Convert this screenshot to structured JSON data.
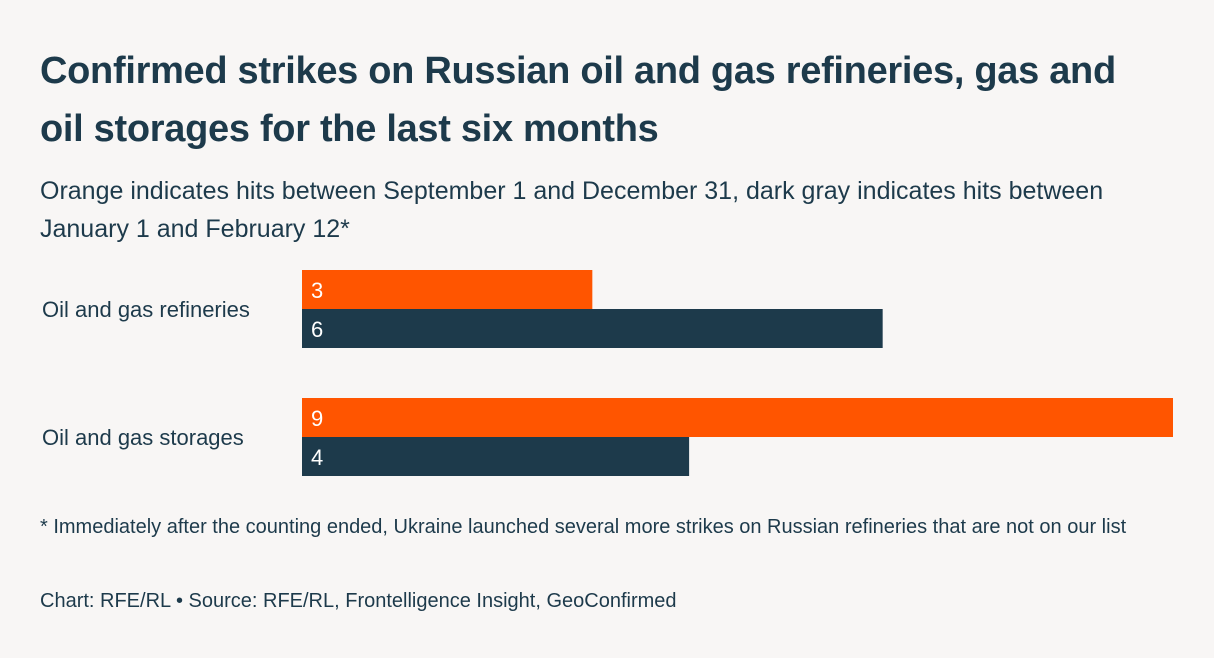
{
  "chart_data": {
    "type": "bar",
    "orientation": "horizontal",
    "title": "Confirmed strikes on Russian oil and gas refineries, gas and oil storages for the last six months",
    "subtitle": "Orange indicates hits between September 1 and December 31, dark gray indicates hits between January 1 and February 12*",
    "categories": [
      "Oil and gas refineries",
      "Oil and gas storages"
    ],
    "series": [
      {
        "name": "September 1 – December 31",
        "color": "#ff5500",
        "values": [
          3,
          9
        ]
      },
      {
        "name": "January 1 – February 12",
        "color": "#1d3a4b",
        "values": [
          6,
          4
        ]
      }
    ],
    "xlim": [
      0,
      9
    ],
    "grid": false,
    "xlabel": "",
    "ylabel": ""
  },
  "footer": {
    "note": "* Immediately after the counting ended, Ukraine launched several more strikes on Russian refineries that are not on our list",
    "credit": "Chart: RFE/RL • Source: RFE/RL, Frontelligence Insight, GeoConfirmed"
  }
}
